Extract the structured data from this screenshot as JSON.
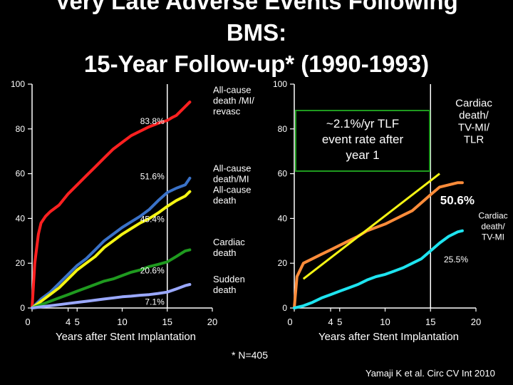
{
  "title": {
    "line1": "Very Late Adverse Events Following",
    "line2": "BMS:",
    "line3": "15-Year Follow-up* (1990-1993)"
  },
  "footnote": "* N=405",
  "citation": "Yamaji K et al. Circ CV Int 2010",
  "chart_data": [
    {
      "type": "line",
      "title": "",
      "xlabel": "Years after Stent Implantation",
      "ylabel": "",
      "xlim": [
        0,
        20
      ],
      "ylim": [
        0,
        100
      ],
      "x_ticks": [
        "0",
        "4",
        "5",
        "10",
        "15",
        "20"
      ],
      "x_tick_values": [
        0,
        4,
        5,
        10,
        15,
        20
      ],
      "y_ticks": [
        "0",
        "20",
        "40",
        "60",
        "80",
        "100"
      ],
      "y_tick_values": [
        0,
        20,
        40,
        60,
        80,
        100
      ],
      "grid": false,
      "colors": {
        "blue": "#3a72c8",
        "yellow": "#f5f514",
        "red": "#ff2020",
        "green": "#1f9a1f",
        "lavender": "#9aa8ff",
        "axis": "#ffffff",
        "vline": "#ffffff"
      },
      "vline_x": 15,
      "series": [
        {
          "name": "All-cause death /MI/ revasc",
          "color": "#ff2020",
          "x": [
            0,
            0.3,
            0.7,
            1,
            1.5,
            2,
            3,
            4,
            5,
            6,
            7,
            8,
            9,
            10,
            11,
            12,
            13,
            14,
            15,
            15.5,
            16,
            16.5,
            17.5
          ],
          "y": [
            0,
            20,
            33,
            38,
            41,
            43,
            46,
            51,
            55,
            59,
            63,
            67,
            71,
            74,
            77,
            79,
            81,
            82.5,
            83.8,
            85,
            86,
            88,
            92
          ]
        },
        {
          "name": "All-cause death/MI",
          "color": "#3a72c8",
          "x": [
            0,
            0.5,
            1,
            2,
            3,
            4,
            5,
            6,
            7,
            8,
            9,
            10,
            11,
            12,
            13,
            14,
            15,
            16,
            17,
            17.5
          ],
          "y": [
            0,
            2,
            4,
            7,
            11,
            15,
            19,
            22,
            26,
            30,
            33,
            36,
            38.5,
            41,
            44,
            48,
            51.6,
            53.5,
            55,
            58
          ]
        },
        {
          "name": "All-cause death",
          "color": "#f5f514",
          "x": [
            0,
            0.5,
            1,
            2,
            3,
            4,
            5,
            6,
            7,
            8,
            9,
            10,
            11,
            12,
            13,
            14,
            15,
            16,
            17,
            17.5
          ],
          "y": [
            0,
            1.5,
            3,
            6,
            9,
            13,
            17,
            20,
            23,
            27,
            30,
            33,
            35.5,
            38,
            40,
            42.5,
            45.4,
            48,
            50,
            52
          ]
        },
        {
          "name": "Cardiac death",
          "color": "#1f9a1f",
          "x": [
            0,
            1,
            2,
            3,
            4,
            5,
            6,
            7,
            8,
            9,
            10,
            11,
            12,
            13,
            14,
            15,
            16,
            17,
            17.5
          ],
          "y": [
            0,
            1.5,
            3,
            4.5,
            6,
            7.5,
            9,
            10.5,
            12,
            13,
            14.5,
            16,
            17,
            18.5,
            19.5,
            20.6,
            23,
            25.5,
            26
          ]
        },
        {
          "name": "Sudden death",
          "color": "#9aa8ff",
          "x": [
            0,
            1,
            2,
            3,
            4,
            5,
            6,
            7,
            8,
            9,
            10,
            11,
            12,
            13,
            14,
            15,
            16,
            17,
            17.5
          ],
          "y": [
            0,
            0.5,
            1,
            1.5,
            2,
            2.5,
            3,
            3.5,
            4,
            4.5,
            5,
            5.3,
            5.7,
            6,
            6.5,
            7.1,
            8.5,
            10,
            10.5
          ]
        }
      ],
      "annotations": [
        {
          "text": "83.8%",
          "x": 15,
          "y": 83.8
        },
        {
          "text": "51.6%",
          "x": 15,
          "y": 59
        },
        {
          "text": "45.4%",
          "x": 15,
          "y": 40
        },
        {
          "text": "20.6%",
          "x": 15,
          "y": 17
        },
        {
          "text": "7.1%",
          "x": 15,
          "y": 3
        }
      ],
      "legend_labels": [
        {
          "lines": [
            "All-cause",
            "death /MI/",
            "revasc"
          ],
          "y": 96
        },
        {
          "lines": [
            "All-cause",
            "death/MI",
            "All-cause",
            "death"
          ],
          "y": 61
        },
        {
          "lines": [
            "Cardiac",
            "death"
          ],
          "y": 28
        },
        {
          "lines": [
            "Sudden",
            "death"
          ],
          "y": 11.5
        }
      ]
    },
    {
      "type": "line",
      "title": "",
      "xlabel": "Years after Stent Implantation",
      "ylabel": "",
      "xlim": [
        0,
        20
      ],
      "ylim": [
        0,
        100
      ],
      "x_ticks": [
        "0",
        "4",
        "5",
        "10",
        "15",
        "20"
      ],
      "x_tick_values": [
        0,
        4,
        5,
        10,
        15,
        20
      ],
      "y_ticks": [
        "0",
        "20",
        "40",
        "60",
        "80",
        "100"
      ],
      "y_tick_values": [
        0,
        20,
        40,
        60,
        80,
        100
      ],
      "grid": false,
      "vline_x": 15,
      "series": [
        {
          "name": "Cardiac death/ TV-MI/ TLR",
          "color": "#ff8c3a",
          "x": [
            0,
            0.3,
            1,
            2,
            3,
            4,
            5,
            6,
            7,
            8,
            9,
            10,
            11,
            12,
            13,
            14,
            15,
            16,
            17,
            18,
            18.5
          ],
          "y": [
            0,
            14,
            20,
            22,
            24,
            26,
            28,
            30,
            32,
            34.5,
            36,
            37.5,
            39.5,
            41.5,
            43.5,
            47,
            50.6,
            54,
            55,
            56,
            56
          ]
        },
        {
          "name": "Cardiac death/ TV-MI",
          "color": "#1ee4f0",
          "x": [
            0,
            1,
            2,
            3,
            4,
            5,
            6,
            7,
            8,
            9,
            10,
            11,
            12,
            13,
            14,
            15,
            16,
            17,
            18,
            18.5
          ],
          "y": [
            0,
            1,
            2.5,
            4.5,
            6,
            7.5,
            9,
            10.5,
            12.5,
            14,
            15,
            16.5,
            18,
            20,
            22,
            25.5,
            29,
            32,
            34,
            34.5
          ]
        }
      ],
      "trend_line": {
        "color": "#f5f514",
        "x": [
          1,
          16
        ],
        "y": [
          13,
          60
        ]
      },
      "rate_box": {
        "lines": [
          "~2.1%/yr TLF",
          "event rate after",
          "year 1"
        ],
        "border": "#1f9a1f"
      },
      "annotations": [
        {
          "text": "50.6%",
          "x": 17,
          "y": 48
        },
        {
          "text": "25.5%",
          "x": 16,
          "y": 22
        }
      ],
      "legend_labels": [
        {
          "lines": [
            "Cardiac",
            "death/",
            "TV-MI/",
            "TLR"
          ],
          "y": 90
        },
        {
          "lines": [
            "Cardiac",
            "death/",
            "TV-MI"
          ],
          "y": 40
        }
      ]
    }
  ]
}
